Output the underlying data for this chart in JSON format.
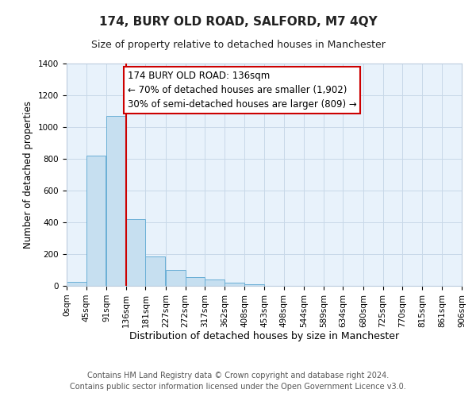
{
  "title": "174, BURY OLD ROAD, SALFORD, M7 4QY",
  "subtitle": "Size of property relative to detached houses in Manchester",
  "xlabel": "Distribution of detached houses by size in Manchester",
  "ylabel": "Number of detached properties",
  "bar_values": [
    25,
    820,
    1070,
    420,
    185,
    100,
    55,
    38,
    20,
    10,
    0,
    0,
    0,
    0,
    0,
    0,
    0,
    0,
    0,
    0
  ],
  "bin_edges": [
    0,
    45,
    91,
    136,
    181,
    227,
    272,
    317,
    362,
    408,
    453,
    498,
    544,
    589,
    634,
    680,
    725,
    770,
    815,
    861,
    906
  ],
  "tick_labels": [
    "0sqm",
    "45sqm",
    "91sqm",
    "136sqm",
    "181sqm",
    "227sqm",
    "272sqm",
    "317sqm",
    "362sqm",
    "408sqm",
    "453sqm",
    "498sqm",
    "544sqm",
    "589sqm",
    "634sqm",
    "680sqm",
    "725sqm",
    "770sqm",
    "815sqm",
    "861sqm",
    "906sqm"
  ],
  "bar_color": "#c6dff0",
  "bar_edge_color": "#6aafd6",
  "vline_x": 136,
  "vline_color": "#cc0000",
  "ylim": [
    0,
    1400
  ],
  "yticks": [
    0,
    200,
    400,
    600,
    800,
    1000,
    1200,
    1400
  ],
  "annotation_title": "174 BURY OLD ROAD: 136sqm",
  "annotation_line1": "← 70% of detached houses are smaller (1,902)",
  "annotation_line2": "30% of semi-detached houses are larger (809) →",
  "annotation_box_color": "#ffffff",
  "annotation_box_edge": "#cc0000",
  "grid_color": "#c8d8e8",
  "background_color": "#e8f2fb",
  "footer1": "Contains HM Land Registry data © Crown copyright and database right 2024.",
  "footer2": "Contains public sector information licensed under the Open Government Licence v3.0.",
  "title_fontsize": 11,
  "subtitle_fontsize": 9,
  "ylabel_fontsize": 8.5,
  "xlabel_fontsize": 9,
  "tick_fontsize": 7.5,
  "footer_fontsize": 7,
  "annotation_fontsize": 8.5
}
